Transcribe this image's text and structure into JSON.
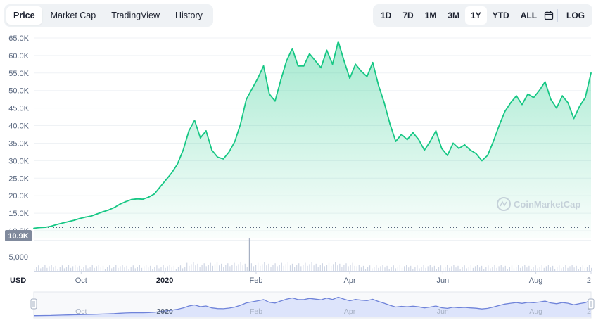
{
  "tabs": [
    {
      "label": "Price",
      "active": true
    },
    {
      "label": "Market Cap",
      "active": false
    },
    {
      "label": "TradingView",
      "active": false
    },
    {
      "label": "History",
      "active": false
    }
  ],
  "ranges": [
    {
      "label": "1D",
      "active": false
    },
    {
      "label": "7D",
      "active": false
    },
    {
      "label": "1M",
      "active": false
    },
    {
      "label": "3M",
      "active": false
    },
    {
      "label": "1Y",
      "active": true
    },
    {
      "label": "YTD",
      "active": false
    },
    {
      "label": "ALL",
      "active": false
    }
  ],
  "calendar_icon": "calendar-icon",
  "log_label": "LOG",
  "watermark": "CoinMarketCap",
  "current_price_label": "10.9K",
  "volume_axis_label": "5,000",
  "currency_label": "USD",
  "colors": {
    "line": "#16c784",
    "area_top": "#16c784",
    "navigator_line": "#6f83d9",
    "navigator_fill": "#dde4fb",
    "badge": "#808a9d"
  },
  "chart_data": {
    "type": "area",
    "ylim": [
      8000,
      67000
    ],
    "yticks": [
      "10.0K",
      "15.0K",
      "20.0K",
      "25.0K",
      "30.0K",
      "35.0K",
      "40.0K",
      "45.0K",
      "50.0K",
      "55.0K",
      "60.0K",
      "65.0K"
    ],
    "ytick_values": [
      10000,
      15000,
      20000,
      25000,
      30000,
      35000,
      40000,
      45000,
      50000,
      55000,
      60000,
      65000
    ],
    "xticks": [
      {
        "label": "Oct",
        "t": 0.085,
        "bold": false
      },
      {
        "label": "2020",
        "t": 0.235,
        "bold": true
      },
      {
        "label": "Feb",
        "t": 0.399,
        "bold": false
      },
      {
        "label": "Apr",
        "t": 0.567,
        "bold": false
      },
      {
        "label": "Jun",
        "t": 0.734,
        "bold": false
      },
      {
        "label": "Aug",
        "t": 0.901,
        "bold": false
      },
      {
        "label": "2",
        "t": 1.0,
        "bold": false
      }
    ],
    "reference_line": 10900,
    "series": [
      {
        "values": [
          10700,
          10900,
          11000,
          11300,
          11800,
          12200,
          12600,
          13000,
          13500,
          13900,
          14200,
          14800,
          15400,
          15900,
          16600,
          17600,
          18300,
          18900,
          19100,
          19000,
          19600,
          20500,
          22500,
          24500,
          26500,
          29000,
          33000,
          38500,
          41500,
          36500,
          38500,
          33000,
          31000,
          30500,
          32500,
          35500,
          40500,
          47500,
          50500,
          53500,
          57000,
          49000,
          47000,
          53000,
          58500,
          62000,
          57000,
          57000,
          60500,
          58500,
          56500,
          61500,
          57500,
          64000,
          58500,
          53500,
          57500,
          55500,
          54000,
          58000,
          51500,
          46500,
          40500,
          35500,
          37500,
          36000,
          38000,
          36000,
          33000,
          35500,
          38500,
          33500,
          31500,
          35000,
          33500,
          34500,
          33000,
          32000,
          30000,
          31500,
          35500,
          40000,
          44000,
          46500,
          48500,
          46000,
          49000,
          48000,
          50000,
          52500,
          47500,
          45000,
          48500,
          46500,
          42000,
          45500,
          48000,
          55000
        ]
      }
    ]
  }
}
